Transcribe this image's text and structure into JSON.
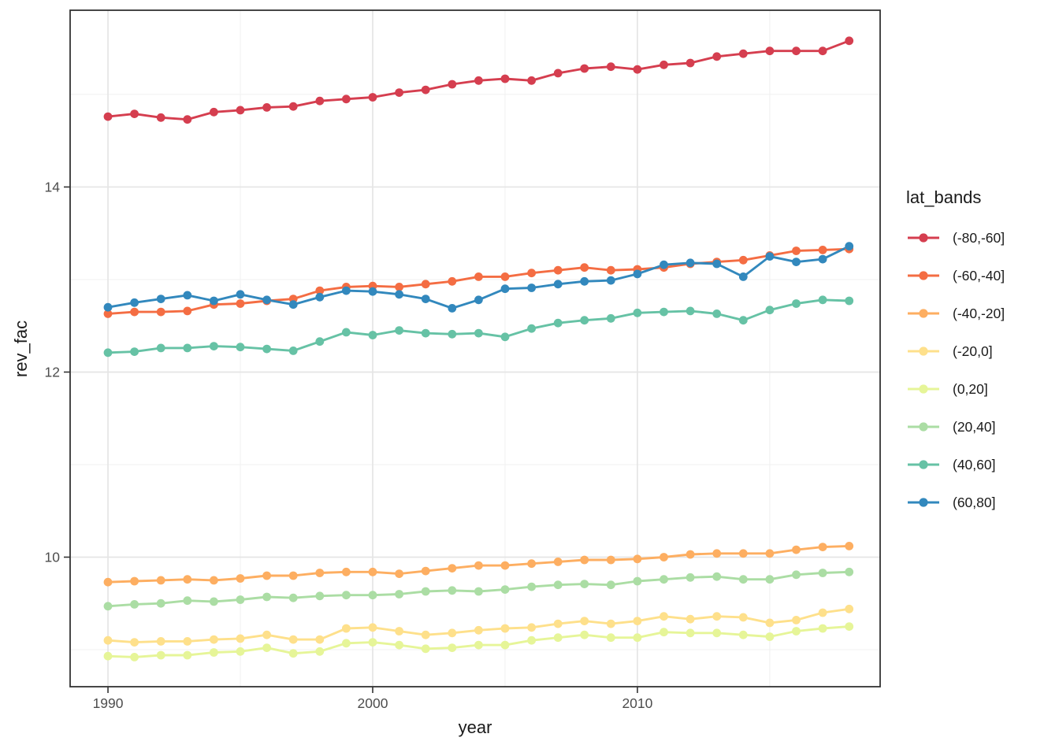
{
  "chart_data": {
    "type": "line",
    "title": "",
    "xlabel": "year",
    "ylabel": "rev_fac",
    "legend_title": "lat_bands",
    "legend_position": "right",
    "grid": true,
    "x": [
      1990,
      1991,
      1992,
      1993,
      1994,
      1995,
      1996,
      1997,
      1998,
      1999,
      2000,
      2001,
      2002,
      2003,
      2004,
      2005,
      2006,
      2007,
      2008,
      2009,
      2010,
      2011,
      2012,
      2013,
      2014,
      2015,
      2016,
      2017,
      2018
    ],
    "x_ticks": [
      1990,
      2000,
      2010
    ],
    "x_minor_gridlines": [
      1995,
      2005,
      2015
    ],
    "y_ticks": [
      10,
      12,
      14
    ],
    "y_minor_gridlines": [
      9,
      11,
      13,
      15
    ],
    "xlim": [
      1988.57,
      2019.17
    ],
    "ylim": [
      8.6,
      15.91
    ],
    "colors": {
      "panel_border": "#333333",
      "major_grid": "#e5e5e5",
      "minor_grid": "#f0f0f0",
      "tick_label": "#4d4d4d",
      "axis_title": "#1a1a1a"
    },
    "series": [
      {
        "name": "(-80,-60]",
        "color": "#D53E4F",
        "values": [
          14.76,
          14.79,
          14.75,
          14.73,
          14.81,
          14.83,
          14.86,
          14.87,
          14.93,
          14.95,
          14.97,
          15.02,
          15.05,
          15.11,
          15.15,
          15.17,
          15.15,
          15.23,
          15.28,
          15.3,
          15.27,
          15.32,
          15.34,
          15.41,
          15.44,
          15.47,
          15.47,
          15.47,
          15.58
        ]
      },
      {
        "name": "(-60,-40]",
        "color": "#F46D43",
        "values": [
          12.63,
          12.65,
          12.65,
          12.66,
          12.73,
          12.74,
          12.77,
          12.79,
          12.88,
          12.92,
          12.93,
          12.92,
          12.95,
          12.98,
          13.03,
          13.03,
          13.07,
          13.1,
          13.13,
          13.1,
          13.11,
          13.13,
          13.17,
          13.19,
          13.21,
          13.26,
          13.31,
          13.32,
          13.33
        ]
      },
      {
        "name": "(-40,-20]",
        "color": "#FDAE61",
        "values": [
          9.73,
          9.74,
          9.75,
          9.76,
          9.75,
          9.77,
          9.8,
          9.8,
          9.83,
          9.84,
          9.84,
          9.82,
          9.85,
          9.88,
          9.91,
          9.91,
          9.93,
          9.95,
          9.97,
          9.97,
          9.98,
          10.0,
          10.03,
          10.04,
          10.04,
          10.04,
          10.08,
          10.11,
          10.12
        ]
      },
      {
        "name": "(-20,0]",
        "color": "#FEE08B",
        "values": [
          9.1,
          9.08,
          9.09,
          9.09,
          9.11,
          9.12,
          9.16,
          9.11,
          9.11,
          9.23,
          9.24,
          9.2,
          9.16,
          9.18,
          9.21,
          9.23,
          9.24,
          9.28,
          9.31,
          9.28,
          9.31,
          9.36,
          9.33,
          9.36,
          9.35,
          9.29,
          9.32,
          9.4,
          9.44
        ]
      },
      {
        "name": "(0,20]",
        "color": "#E6F598",
        "values": [
          8.93,
          8.92,
          8.94,
          8.94,
          8.97,
          8.98,
          9.02,
          8.96,
          8.98,
          9.07,
          9.08,
          9.05,
          9.01,
          9.02,
          9.05,
          9.05,
          9.1,
          9.13,
          9.16,
          9.13,
          9.13,
          9.19,
          9.18,
          9.18,
          9.16,
          9.14,
          9.2,
          9.23,
          9.25
        ]
      },
      {
        "name": "(20,40]",
        "color": "#ABDDA4",
        "values": [
          9.47,
          9.49,
          9.5,
          9.53,
          9.52,
          9.54,
          9.57,
          9.56,
          9.58,
          9.59,
          9.59,
          9.6,
          9.63,
          9.64,
          9.63,
          9.65,
          9.68,
          9.7,
          9.71,
          9.7,
          9.74,
          9.76,
          9.78,
          9.79,
          9.76,
          9.76,
          9.81,
          9.83,
          9.84
        ]
      },
      {
        "name": "(40,60]",
        "color": "#66C2A5",
        "values": [
          12.21,
          12.22,
          12.26,
          12.26,
          12.28,
          12.27,
          12.25,
          12.23,
          12.33,
          12.43,
          12.4,
          12.45,
          12.42,
          12.41,
          12.42,
          12.38,
          12.47,
          12.53,
          12.56,
          12.58,
          12.64,
          12.65,
          12.66,
          12.63,
          12.56,
          12.67,
          12.74,
          12.78,
          12.77
        ]
      },
      {
        "name": "(60,80]",
        "color": "#3288BD",
        "values": [
          12.7,
          12.75,
          12.79,
          12.83,
          12.77,
          12.84,
          12.78,
          12.73,
          12.81,
          12.88,
          12.87,
          12.84,
          12.79,
          12.69,
          12.78,
          12.9,
          12.91,
          12.95,
          12.98,
          12.99,
          13.06,
          13.16,
          13.18,
          13.17,
          13.03,
          13.25,
          13.19,
          13.22,
          13.36
        ]
      }
    ]
  }
}
